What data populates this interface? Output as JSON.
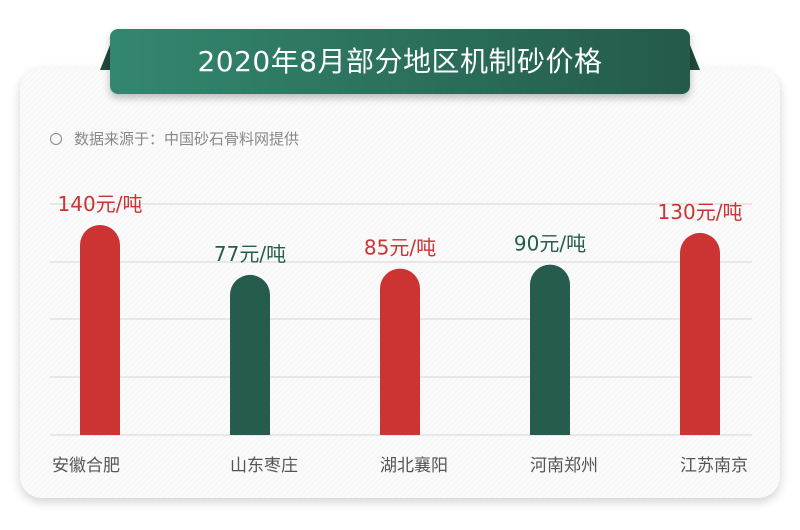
{
  "title": "2020年8月部分地区机制砂价格",
  "source": "数据来源于：中国砂石骨料网提供",
  "colors": {
    "red": "#cc3333",
    "green": "#265c4e",
    "banner": "#2e7a65"
  },
  "chart_data": {
    "type": "bar",
    "title": "2020年8月部分地区机制砂价格",
    "categories": [
      "安徽合肥",
      "山东枣庄",
      "湖北襄阳",
      "河南郑州",
      "江苏南京"
    ],
    "values": [
      140,
      77,
      85,
      90,
      130
    ],
    "unit": "元/吨",
    "data_labels": [
      "140元/吨",
      "77元/吨",
      "85元/吨",
      "90元/吨",
      "130元/吨"
    ],
    "bar_colors": [
      "#cc3333",
      "#265c4e",
      "#cc3333",
      "#265c4e",
      "#cc3333"
    ],
    "grid": true,
    "legend": "none"
  }
}
